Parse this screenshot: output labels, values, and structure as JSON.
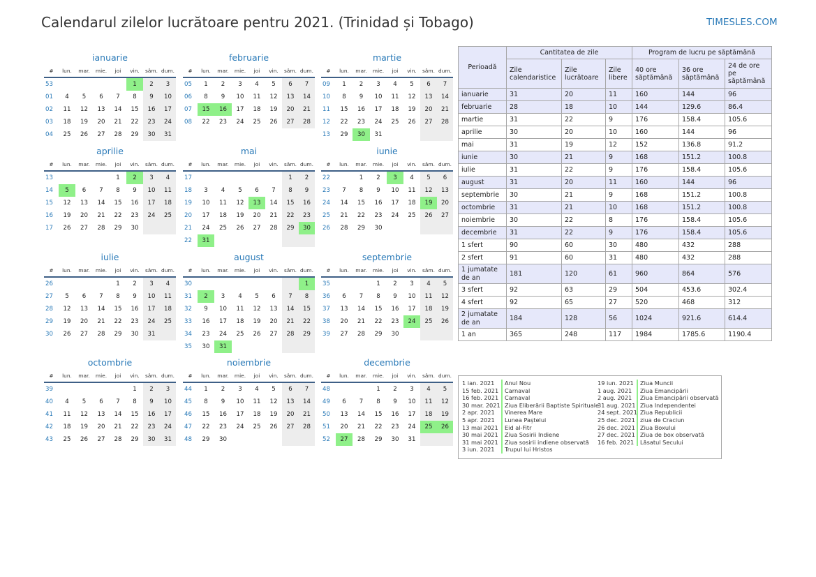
{
  "title": "Calendarul zilelor lucrătoare pentru 2021. (Trinidad și Tobago)",
  "brand": "TIMESLES.COM",
  "colors": {
    "accent": "#2a7ab8",
    "holiday": "#8ff089",
    "weekend": "#ededed",
    "header_rule": "#3e5f86",
    "table_alt": "#e6e8fa"
  },
  "weekday_headers": [
    "#",
    "lun.",
    "mar.",
    "mie.",
    "joi",
    "vin.",
    "sâm.",
    "dum."
  ],
  "months": [
    {
      "name": "ianuarie",
      "rows": [
        [
          "53",
          "",
          "",
          "",
          "",
          "1",
          "2",
          "3"
        ],
        [
          "01",
          "4",
          "5",
          "6",
          "7",
          "8",
          "9",
          "10"
        ],
        [
          "02",
          "11",
          "12",
          "13",
          "14",
          "15",
          "16",
          "17"
        ],
        [
          "03",
          "18",
          "19",
          "20",
          "21",
          "22",
          "23",
          "24"
        ],
        [
          "04",
          "25",
          "26",
          "27",
          "28",
          "29",
          "30",
          "31"
        ]
      ],
      "holidays": [
        "1"
      ]
    },
    {
      "name": "februarie",
      "rows": [
        [
          "05",
          "1",
          "2",
          "3",
          "4",
          "5",
          "6",
          "7"
        ],
        [
          "06",
          "8",
          "9",
          "10",
          "11",
          "12",
          "13",
          "14"
        ],
        [
          "07",
          "15",
          "16",
          "17",
          "18",
          "19",
          "20",
          "21"
        ],
        [
          "08",
          "22",
          "23",
          "24",
          "25",
          "26",
          "27",
          "28"
        ]
      ],
      "holidays": [
        "15",
        "16"
      ]
    },
    {
      "name": "martie",
      "rows": [
        [
          "09",
          "1",
          "2",
          "3",
          "4",
          "5",
          "6",
          "7"
        ],
        [
          "10",
          "8",
          "9",
          "10",
          "11",
          "12",
          "13",
          "14"
        ],
        [
          "11",
          "15",
          "16",
          "17",
          "18",
          "19",
          "20",
          "21"
        ],
        [
          "12",
          "22",
          "23",
          "24",
          "25",
          "26",
          "27",
          "28"
        ],
        [
          "13",
          "29",
          "30",
          "31",
          "",
          "",
          "",
          ""
        ]
      ],
      "holidays": [
        "30"
      ]
    },
    {
      "name": "aprilie",
      "rows": [
        [
          "13",
          "",
          "",
          "",
          "1",
          "2",
          "3",
          "4"
        ],
        [
          "14",
          "5",
          "6",
          "7",
          "8",
          "9",
          "10",
          "11"
        ],
        [
          "15",
          "12",
          "13",
          "14",
          "15",
          "16",
          "17",
          "18"
        ],
        [
          "16",
          "19",
          "20",
          "21",
          "22",
          "23",
          "24",
          "25"
        ],
        [
          "17",
          "26",
          "27",
          "28",
          "29",
          "30",
          "",
          ""
        ]
      ],
      "holidays": [
        "2",
        "5"
      ]
    },
    {
      "name": "mai",
      "rows": [
        [
          "17",
          "",
          "",
          "",
          "",
          "",
          "1",
          "2"
        ],
        [
          "18",
          "3",
          "4",
          "5",
          "6",
          "7",
          "8",
          "9"
        ],
        [
          "19",
          "10",
          "11",
          "12",
          "13",
          "14",
          "15",
          "16"
        ],
        [
          "20",
          "17",
          "18",
          "19",
          "20",
          "21",
          "22",
          "23"
        ],
        [
          "21",
          "24",
          "25",
          "26",
          "27",
          "28",
          "29",
          "30"
        ],
        [
          "22",
          "31",
          "",
          "",
          "",
          "",
          "",
          ""
        ]
      ],
      "holidays": [
        "13",
        "30",
        "31"
      ]
    },
    {
      "name": "iunie",
      "rows": [
        [
          "22",
          "",
          "1",
          "2",
          "3",
          "4",
          "5",
          "6"
        ],
        [
          "23",
          "7",
          "8",
          "9",
          "10",
          "11",
          "12",
          "13"
        ],
        [
          "24",
          "14",
          "15",
          "16",
          "17",
          "18",
          "19",
          "20"
        ],
        [
          "25",
          "21",
          "22",
          "23",
          "24",
          "25",
          "26",
          "27"
        ],
        [
          "26",
          "28",
          "29",
          "30",
          "",
          "",
          "",
          ""
        ]
      ],
      "holidays": [
        "3",
        "19"
      ]
    },
    {
      "name": "iulie",
      "rows": [
        [
          "26",
          "",
          "",
          "",
          "1",
          "2",
          "3",
          "4"
        ],
        [
          "27",
          "5",
          "6",
          "7",
          "8",
          "9",
          "10",
          "11"
        ],
        [
          "28",
          "12",
          "13",
          "14",
          "15",
          "16",
          "17",
          "18"
        ],
        [
          "29",
          "19",
          "20",
          "21",
          "22",
          "23",
          "24",
          "25"
        ],
        [
          "30",
          "26",
          "27",
          "28",
          "29",
          "30",
          "31",
          ""
        ]
      ],
      "holidays": []
    },
    {
      "name": "august",
      "rows": [
        [
          "30",
          "",
          "",
          "",
          "",
          "",
          "",
          "1"
        ],
        [
          "31",
          "2",
          "3",
          "4",
          "5",
          "6",
          "7",
          "8"
        ],
        [
          "32",
          "9",
          "10",
          "11",
          "12",
          "13",
          "14",
          "15"
        ],
        [
          "33",
          "16",
          "17",
          "18",
          "19",
          "20",
          "21",
          "22"
        ],
        [
          "34",
          "23",
          "24",
          "25",
          "26",
          "27",
          "28",
          "29"
        ],
        [
          "35",
          "30",
          "31",
          "",
          "",
          "",
          "",
          ""
        ]
      ],
      "holidays": [
        "1",
        "2",
        "31"
      ]
    },
    {
      "name": "septembrie",
      "rows": [
        [
          "35",
          "",
          "",
          "1",
          "2",
          "3",
          "4",
          "5"
        ],
        [
          "36",
          "6",
          "7",
          "8",
          "9",
          "10",
          "11",
          "12"
        ],
        [
          "37",
          "13",
          "14",
          "15",
          "16",
          "17",
          "18",
          "19"
        ],
        [
          "38",
          "20",
          "21",
          "22",
          "23",
          "24",
          "25",
          "26"
        ],
        [
          "39",
          "27",
          "28",
          "29",
          "30",
          "",
          "",
          ""
        ]
      ],
      "holidays": [
        "24"
      ]
    },
    {
      "name": "octombrie",
      "rows": [
        [
          "39",
          "",
          "",
          "",
          "",
          "1",
          "2",
          "3"
        ],
        [
          "40",
          "4",
          "5",
          "6",
          "7",
          "8",
          "9",
          "10"
        ],
        [
          "41",
          "11",
          "12",
          "13",
          "14",
          "15",
          "16",
          "17"
        ],
        [
          "42",
          "18",
          "19",
          "20",
          "21",
          "22",
          "23",
          "24"
        ],
        [
          "43",
          "25",
          "26",
          "27",
          "28",
          "29",
          "30",
          "31"
        ]
      ],
      "holidays": []
    },
    {
      "name": "noiembrie",
      "rows": [
        [
          "44",
          "1",
          "2",
          "3",
          "4",
          "5",
          "6",
          "7"
        ],
        [
          "45",
          "8",
          "9",
          "10",
          "11",
          "12",
          "13",
          "14"
        ],
        [
          "46",
          "15",
          "16",
          "17",
          "18",
          "19",
          "20",
          "21"
        ],
        [
          "47",
          "22",
          "23",
          "24",
          "25",
          "26",
          "27",
          "28"
        ],
        [
          "48",
          "29",
          "30",
          "",
          "",
          "",
          "",
          ""
        ]
      ],
      "holidays": []
    },
    {
      "name": "decembrie",
      "rows": [
        [
          "48",
          "",
          "",
          "1",
          "2",
          "3",
          "4",
          "5"
        ],
        [
          "49",
          "6",
          "7",
          "8",
          "9",
          "10",
          "11",
          "12"
        ],
        [
          "50",
          "13",
          "14",
          "15",
          "16",
          "17",
          "18",
          "19"
        ],
        [
          "51",
          "20",
          "21",
          "22",
          "23",
          "24",
          "25",
          "26"
        ],
        [
          "52",
          "27",
          "28",
          "29",
          "30",
          "31",
          "",
          ""
        ]
      ],
      "holidays": [
        "25",
        "26",
        "27"
      ]
    }
  ],
  "summary": {
    "period_header": "Perioadă",
    "group_days": "Cantitatea de zile",
    "group_hours": "Program de lucru pe săptămână",
    "cols": [
      "Zile calendaristice",
      "Zile lucrătoare",
      "Zile libere",
      "40 ore săptămână",
      "36 ore săptămână",
      "24 de ore pe săptămână"
    ],
    "rows": [
      [
        "ianuarie",
        "31",
        "20",
        "11",
        "160",
        "144",
        "96"
      ],
      [
        "februarie",
        "28",
        "18",
        "10",
        "144",
        "129.6",
        "86.4"
      ],
      [
        "martie",
        "31",
        "22",
        "9",
        "176",
        "158.4",
        "105.6"
      ],
      [
        "aprilie",
        "30",
        "20",
        "10",
        "160",
        "144",
        "96"
      ],
      [
        "mai",
        "31",
        "19",
        "12",
        "152",
        "136.8",
        "91.2"
      ],
      [
        "iunie",
        "30",
        "21",
        "9",
        "168",
        "151.2",
        "100.8"
      ],
      [
        "iulie",
        "31",
        "22",
        "9",
        "176",
        "158.4",
        "105.6"
      ],
      [
        "august",
        "31",
        "20",
        "11",
        "160",
        "144",
        "96"
      ],
      [
        "septembrie",
        "30",
        "21",
        "9",
        "168",
        "151.2",
        "100.8"
      ],
      [
        "octombrie",
        "31",
        "21",
        "10",
        "168",
        "151.2",
        "100.8"
      ],
      [
        "noiembrie",
        "30",
        "22",
        "8",
        "176",
        "158.4",
        "105.6"
      ],
      [
        "decembrie",
        "31",
        "22",
        "9",
        "176",
        "158.4",
        "105.6"
      ],
      [
        "1 sfert",
        "90",
        "60",
        "30",
        "480",
        "432",
        "288"
      ],
      [
        "2 sfert",
        "91",
        "60",
        "31",
        "480",
        "432",
        "288"
      ],
      [
        "1 jumatate de an",
        "181",
        "120",
        "61",
        "960",
        "864",
        "576"
      ],
      [
        "3 sfert",
        "92",
        "63",
        "29",
        "504",
        "453.6",
        "302.4"
      ],
      [
        "4 sfert",
        "92",
        "65",
        "27",
        "520",
        "468",
        "312"
      ],
      [
        "2 jumatate de an",
        "184",
        "128",
        "56",
        "1024",
        "921.6",
        "614.4"
      ],
      [
        "1 an",
        "365",
        "248",
        "117",
        "1984",
        "1785.6",
        "1190.4"
      ]
    ]
  },
  "holiday_list": {
    "left": [
      [
        "1 ian. 2021",
        "Anul Nou"
      ],
      [
        "15 feb. 2021",
        "Carnaval"
      ],
      [
        "16 feb. 2021",
        "Carnaval"
      ],
      [
        "30 mar. 2021",
        "Ziua Eliberării Baptiste Spirituale"
      ],
      [
        "2 apr. 2021",
        "Vinerea Mare"
      ],
      [
        "5 apr. 2021",
        "Lunea Paștelui"
      ],
      [
        "13 mai 2021",
        "Eid al-Fitr"
      ],
      [
        "30 mai 2021",
        "Ziua Sosirii Indiene"
      ],
      [
        "31 mai 2021",
        "Ziua sosirii indiene observată"
      ],
      [
        "3 iun. 2021",
        "Trupul lui Hristos"
      ]
    ],
    "right": [
      [
        "19 iun. 2021",
        "Ziua Muncii"
      ],
      [
        "1 aug. 2021",
        "Ziua Emancipării"
      ],
      [
        "2 aug. 2021",
        "Ziua Emancipării observată"
      ],
      [
        "31 aug. 2021",
        "Ziua Independentei"
      ],
      [
        "24 sept. 2021",
        "Ziua Republicii"
      ],
      [
        "25 dec. 2021",
        "ziua de Craciun"
      ],
      [
        "26 dec. 2021",
        "Ziua Boxului"
      ],
      [
        "27 dec. 2021",
        "Ziua de box observată"
      ],
      [
        "16 feb. 2021",
        "Lăsatul Secului"
      ]
    ]
  }
}
